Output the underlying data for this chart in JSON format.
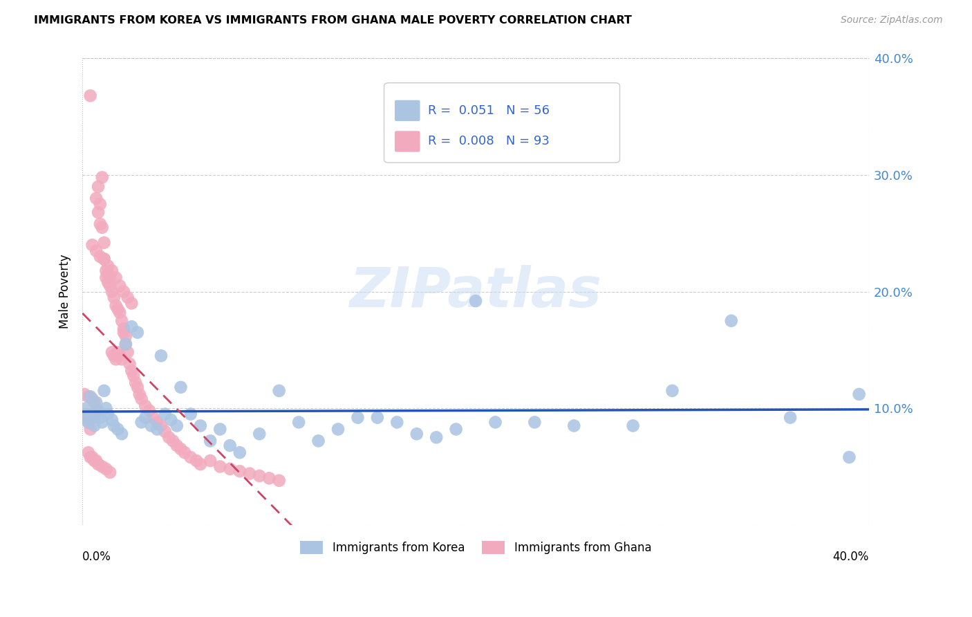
{
  "title": "IMMIGRANTS FROM KOREA VS IMMIGRANTS FROM GHANA MALE POVERTY CORRELATION CHART",
  "source": "Source: ZipAtlas.com",
  "ylabel": "Male Poverty",
  "watermark": "ZIPatlas",
  "xlim": [
    0,
    0.4
  ],
  "ylim": [
    0,
    0.4
  ],
  "yticks": [
    0.1,
    0.2,
    0.3,
    0.4
  ],
  "ytick_labels": [
    "10.0%",
    "20.0%",
    "30.0%",
    "40.0%"
  ],
  "korea_R": "0.051",
  "korea_N": "56",
  "ghana_R": "0.008",
  "ghana_N": "93",
  "korea_color": "#aac4e2",
  "ghana_color": "#f2aabe",
  "korea_line_color": "#2255bb",
  "ghana_line_color": "#cc4466",
  "korea_x": [
    0.001,
    0.002,
    0.003,
    0.004,
    0.005,
    0.006,
    0.007,
    0.008,
    0.009,
    0.01,
    0.011,
    0.012,
    0.013,
    0.015,
    0.016,
    0.018,
    0.02,
    0.022,
    0.025,
    0.028,
    0.03,
    0.032,
    0.035,
    0.038,
    0.04,
    0.042,
    0.045,
    0.048,
    0.05,
    0.055,
    0.06,
    0.065,
    0.07,
    0.075,
    0.08,
    0.09,
    0.1,
    0.11,
    0.12,
    0.13,
    0.14,
    0.15,
    0.16,
    0.17,
    0.18,
    0.19,
    0.2,
    0.21,
    0.23,
    0.25,
    0.28,
    0.3,
    0.33,
    0.36,
    0.39,
    0.395
  ],
  "korea_y": [
    0.092,
    0.1,
    0.088,
    0.11,
    0.095,
    0.085,
    0.105,
    0.098,
    0.092,
    0.088,
    0.115,
    0.1,
    0.095,
    0.09,
    0.085,
    0.082,
    0.078,
    0.155,
    0.17,
    0.165,
    0.088,
    0.092,
    0.085,
    0.082,
    0.145,
    0.095,
    0.09,
    0.085,
    0.118,
    0.095,
    0.085,
    0.072,
    0.082,
    0.068,
    0.062,
    0.078,
    0.115,
    0.088,
    0.072,
    0.082,
    0.092,
    0.092,
    0.088,
    0.078,
    0.075,
    0.082,
    0.192,
    0.088,
    0.088,
    0.085,
    0.085,
    0.115,
    0.175,
    0.092,
    0.058,
    0.112
  ],
  "ghana_x": [
    0.001,
    0.002,
    0.002,
    0.003,
    0.003,
    0.004,
    0.004,
    0.005,
    0.005,
    0.006,
    0.006,
    0.007,
    0.007,
    0.008,
    0.008,
    0.009,
    0.009,
    0.01,
    0.01,
    0.011,
    0.011,
    0.012,
    0.012,
    0.013,
    0.013,
    0.014,
    0.014,
    0.015,
    0.015,
    0.016,
    0.016,
    0.017,
    0.017,
    0.018,
    0.018,
    0.019,
    0.019,
    0.02,
    0.02,
    0.021,
    0.021,
    0.022,
    0.022,
    0.023,
    0.024,
    0.025,
    0.026,
    0.027,
    0.028,
    0.029,
    0.03,
    0.032,
    0.034,
    0.036,
    0.038,
    0.04,
    0.042,
    0.044,
    0.046,
    0.048,
    0.05,
    0.052,
    0.055,
    0.058,
    0.06,
    0.065,
    0.07,
    0.075,
    0.08,
    0.085,
    0.09,
    0.095,
    0.1,
    0.005,
    0.007,
    0.009,
    0.011,
    0.013,
    0.015,
    0.017,
    0.019,
    0.021,
    0.023,
    0.025,
    0.004,
    0.006,
    0.008,
    0.01,
    0.012,
    0.014,
    0.003,
    0.005,
    0.007
  ],
  "ghana_y": [
    0.112,
    0.095,
    0.092,
    0.11,
    0.088,
    0.082,
    0.368,
    0.108,
    0.095,
    0.105,
    0.092,
    0.28,
    0.098,
    0.268,
    0.29,
    0.258,
    0.275,
    0.298,
    0.255,
    0.242,
    0.228,
    0.218,
    0.212,
    0.208,
    0.215,
    0.205,
    0.212,
    0.148,
    0.2,
    0.145,
    0.195,
    0.142,
    0.188,
    0.185,
    0.148,
    0.182,
    0.145,
    0.142,
    0.175,
    0.168,
    0.165,
    0.162,
    0.155,
    0.148,
    0.138,
    0.132,
    0.128,
    0.122,
    0.118,
    0.112,
    0.108,
    0.102,
    0.098,
    0.092,
    0.088,
    0.085,
    0.08,
    0.075,
    0.072,
    0.068,
    0.065,
    0.062,
    0.058,
    0.055,
    0.052,
    0.055,
    0.05,
    0.048,
    0.046,
    0.044,
    0.042,
    0.04,
    0.038,
    0.24,
    0.235,
    0.23,
    0.228,
    0.222,
    0.218,
    0.212,
    0.205,
    0.2,
    0.195,
    0.19,
    0.058,
    0.055,
    0.052,
    0.05,
    0.048,
    0.045,
    0.062,
    0.058,
    0.055
  ]
}
